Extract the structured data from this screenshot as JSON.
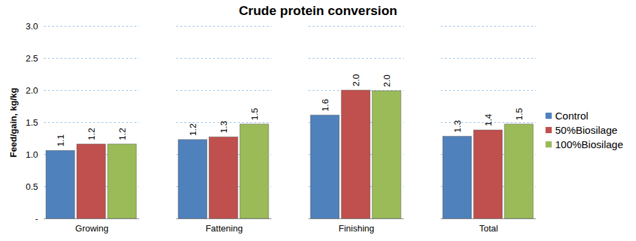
{
  "chart_data": {
    "type": "bar",
    "title": "Crude protein conversion",
    "y_label": "Feed/gain, kg/kg",
    "categories": [
      "Growing",
      "Fattening",
      "Finishing",
      "Total"
    ],
    "series": [
      {
        "name": "Control",
        "color": "#4f81bd",
        "values": [
          1.06,
          1.23,
          1.61,
          1.28
        ],
        "value_labels": [
          "1.1",
          "1.2",
          "1.6",
          "1.3"
        ]
      },
      {
        "name": "50%Biosilage",
        "color": "#c0504d",
        "values": [
          1.16,
          1.27,
          2.0,
          1.38
        ],
        "value_labels": [
          "1.2",
          "1.3",
          "2.0",
          "1.4"
        ]
      },
      {
        "name": "100%Biosilage",
        "color": "#9bbb59",
        "values": [
          1.16,
          1.47,
          1.99,
          1.47
        ],
        "value_labels": [
          "1.2",
          "1.5",
          "2.0",
          "1.5"
        ]
      }
    ],
    "ylim": [
      0,
      3
    ],
    "yticks": [
      {
        "value": 0,
        "label": "-"
      },
      0.5,
      {
        "value": 1,
        "label": "1.0"
      },
      1.5,
      {
        "value": 2,
        "label": "2.0"
      },
      2.5,
      {
        "value": 3,
        "label": "3.0"
      }
    ],
    "grid": true,
    "legend": "right",
    "data_labels": true
  }
}
